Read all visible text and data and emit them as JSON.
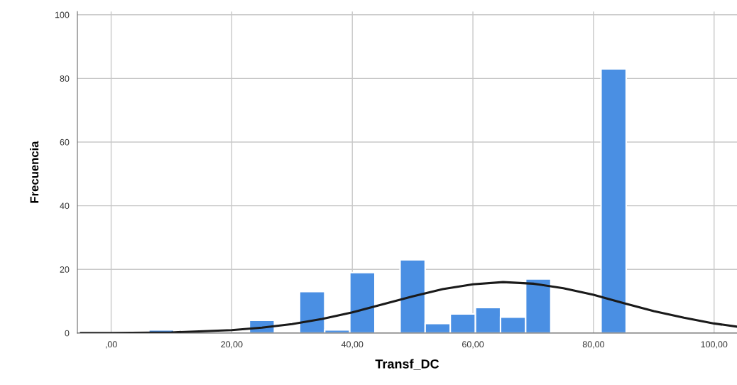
{
  "chart_data": {
    "type": "histogram",
    "xlabel": "Transf_DC",
    "ylabel": "Frecuencia",
    "series": [
      {
        "color": "#4a8fe3",
        "bins": [
          6.25,
          10.42,
          14.58,
          18.75,
          22.92,
          27.08,
          31.25,
          35.42,
          39.58,
          43.75,
          47.92,
          52.08,
          56.25,
          60.42,
          64.58,
          68.75,
          72.92,
          77.08,
          81.25,
          85.42
        ],
        "values": [
          1,
          0,
          0,
          0,
          4,
          0,
          13,
          1,
          19,
          0,
          23,
          3,
          6,
          8,
          5,
          17,
          0,
          0,
          83
        ]
      },
      {
        "type": "line",
        "color": "#1a1a1a",
        "x": [
          -5,
          0,
          10,
          20,
          25,
          30,
          35,
          40,
          45,
          50,
          55,
          60,
          65,
          70,
          75,
          80,
          85,
          90,
          95,
          100,
          103.8
        ],
        "values": [
          0,
          0,
          0.2,
          0.9,
          1.7,
          2.8,
          4.4,
          6.5,
          9,
          11.5,
          13.8,
          15.3,
          16,
          15.5,
          14.1,
          12,
          9.4,
          6.9,
          4.8,
          3,
          2
        ]
      }
    ],
    "xlim": [
      -5.6,
      103.8
    ],
    "ylim": [
      0,
      101
    ],
    "xticks": [
      {
        "value": 0,
        "label": ",00"
      },
      {
        "value": 20,
        "label": "20,00"
      },
      {
        "value": 40,
        "label": "40,00"
      },
      {
        "value": 60,
        "label": "60,00"
      },
      {
        "value": 80,
        "label": "80,00"
      },
      {
        "value": 100,
        "label": "100,00"
      }
    ],
    "yticks": [
      0,
      20,
      40,
      60,
      80,
      100
    ],
    "grid": true
  }
}
